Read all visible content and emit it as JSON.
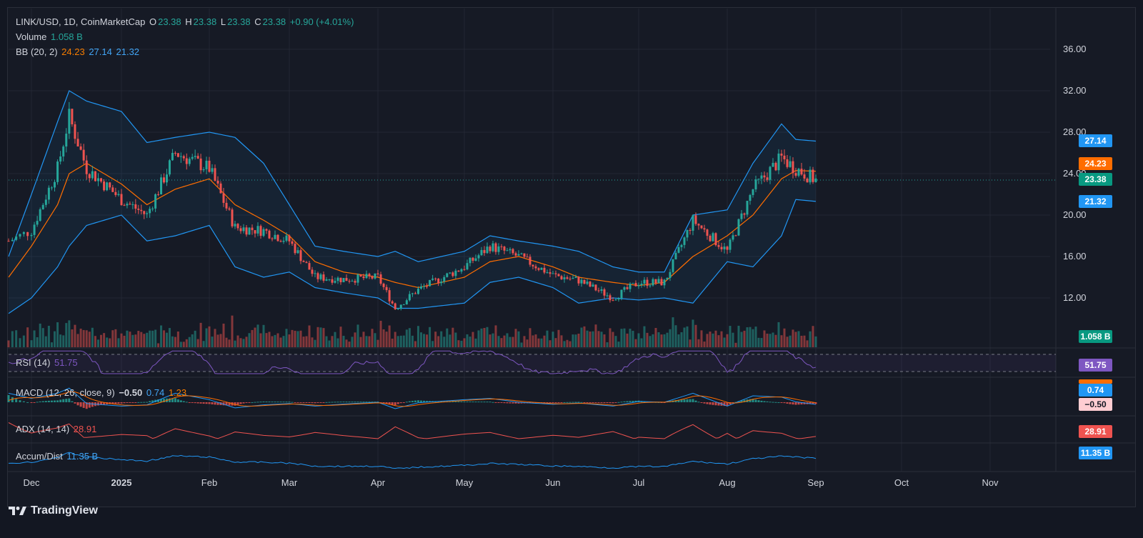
{
  "header": {
    "symbol": "LINK/USD, 1D, CoinMarketCap",
    "o_label": "O",
    "o_value": "23.38",
    "h_label": "H",
    "h_value": "23.38",
    "l_label": "L",
    "l_value": "23.38",
    "c_label": "C",
    "c_value": "23.38",
    "change": "+0.90 (+4.01%)"
  },
  "volume_legend": {
    "label": "Volume",
    "value": "1.058 B"
  },
  "bb_legend": {
    "label": "BB (20, 2)",
    "basis": "24.23",
    "upper": "27.14",
    "lower": "21.32"
  },
  "rsi_legend": {
    "label": "RSI (14)",
    "value": "51.75"
  },
  "macd_legend": {
    "label": "MACD (12, 26, close, 9)",
    "hist": "−0.50",
    "macd": "0.74",
    "signal": "1.23"
  },
  "adx_legend": {
    "label": "ADX (14, 14)",
    "value": "28.91"
  },
  "ad_legend": {
    "label": "Accum/Dist",
    "value": "11.35 B"
  },
  "badges": {
    "bb_upper": "27.14",
    "bb_basis": "24.23",
    "last_price": "23.38",
    "bb_lower": "21.32",
    "volume": "1.058 B",
    "rsi": "51.75",
    "macd": "0.74",
    "macd_hist": "−0.50",
    "adx": "28.91",
    "ad": "11.35 B"
  },
  "price_axis": [
    "36.00",
    "32.00",
    "28.00",
    "24.00",
    "20.00",
    "16.00",
    "12.00"
  ],
  "time_axis": [
    "Dec",
    "2025",
    "Feb",
    "Mar",
    "Apr",
    "May",
    "Jun",
    "Jul",
    "Aug",
    "Sep",
    "Oct",
    "Nov"
  ],
  "brand": "TradingView",
  "colors": {
    "up": "#26a69a",
    "down": "#ef5350",
    "bb_band": "#2196f3",
    "bb_basis": "#ff6d00",
    "rsi": "#7e57c2",
    "macd": "#2196f3",
    "signal": "#ff6d00",
    "adx": "#ef5350",
    "ad": "#2196f3"
  },
  "chart_data": {
    "type": "line",
    "title": "LINK/USD, 1D, CoinMarketCap",
    "x": [
      "2024-11-25",
      "2024-12-01",
      "2024-12-10",
      "2024-12-14",
      "2024-12-20",
      "2025-01-01",
      "2025-01-10",
      "2025-01-20",
      "2025-02-01",
      "2025-02-10",
      "2025-02-20",
      "2025-03-01",
      "2025-03-10",
      "2025-03-20",
      "2025-04-01",
      "2025-04-07",
      "2025-04-15",
      "2025-05-01",
      "2025-05-10",
      "2025-05-20",
      "2025-06-01",
      "2025-06-10",
      "2025-06-22",
      "2025-07-01",
      "2025-07-10",
      "2025-07-20",
      "2025-08-01",
      "2025-08-10",
      "2025-08-20",
      "2025-08-25",
      "2025-09-01"
    ],
    "series": [
      {
        "name": "Close",
        "values": [
          17.5,
          18.5,
          24.5,
          29.5,
          24.5,
          21.5,
          20.0,
          26.0,
          24.5,
          18.8,
          18.5,
          17.5,
          14.0,
          13.8,
          14.0,
          11.0,
          12.8,
          15.0,
          17.0,
          16.0,
          14.2,
          13.7,
          12.0,
          13.5,
          13.5,
          19.5,
          16.5,
          22.5,
          25.5,
          24.5,
          23.38
        ]
      },
      {
        "name": "BB Basis",
        "values": [
          14.0,
          17.0,
          21.0,
          24.0,
          25.0,
          23.0,
          21.0,
          22.5,
          23.5,
          21.0,
          19.5,
          18.0,
          15.5,
          14.5,
          14.0,
          13.5,
          13.0,
          14.0,
          15.5,
          16.0,
          15.0,
          14.0,
          13.5,
          13.2,
          13.5,
          16.0,
          18.0,
          20.0,
          23.5,
          24.3,
          24.23
        ]
      },
      {
        "name": "BB Upper",
        "values": [
          16.0,
          22.0,
          29.0,
          32.0,
          31.0,
          30.0,
          27.0,
          27.5,
          28.0,
          27.5,
          25.0,
          21.0,
          17.0,
          16.5,
          16.0,
          16.5,
          15.5,
          16.5,
          18.0,
          17.5,
          17.0,
          16.5,
          15.0,
          14.5,
          14.5,
          20.0,
          20.5,
          25.0,
          28.8,
          27.3,
          27.14
        ]
      },
      {
        "name": "BB Lower",
        "values": [
          10.5,
          12.0,
          15.0,
          17.0,
          19.0,
          20.0,
          17.5,
          18.0,
          19.0,
          15.0,
          14.0,
          14.5,
          13.0,
          12.5,
          12.0,
          11.0,
          11.0,
          11.5,
          13.5,
          14.0,
          13.0,
          11.5,
          12.0,
          11.8,
          12.0,
          11.5,
          15.5,
          15.0,
          18.0,
          21.5,
          21.32
        ]
      }
    ],
    "ylim": [
      10.5,
      38.0
    ],
    "grid": true,
    "indicators": {
      "volume_last": "1.058 B",
      "rsi_last": 51.75,
      "macd_last": 0.74,
      "macd_signal_last": 1.23,
      "macd_hist_last": -0.5,
      "adx_last": 28.91,
      "accum_dist_last": "11.35 B"
    }
  }
}
